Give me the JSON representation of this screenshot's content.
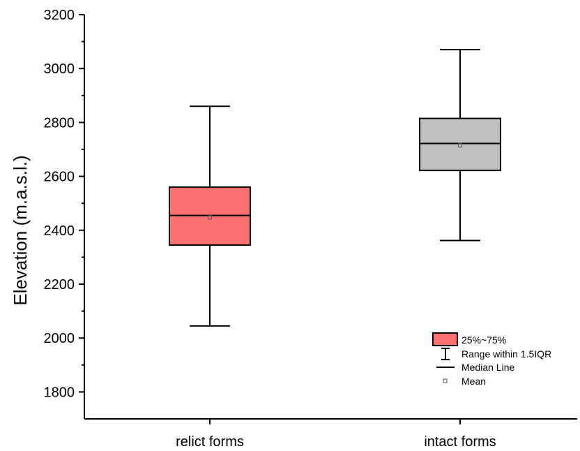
{
  "chart_data": {
    "type": "box",
    "title": "",
    "xlabel": "",
    "ylabel": "Elevation (m.a.s.l.)",
    "ylim": [
      1700,
      3200
    ],
    "yticks": [
      1800,
      2000,
      2200,
      2400,
      2600,
      2800,
      3000,
      3200
    ],
    "grid": false,
    "legend_position": "bottom-right",
    "categories": [
      "relict forms",
      "intact forms"
    ],
    "boxes": [
      {
        "category": "relict forms",
        "color": "#fb7070",
        "whisker_low": 2045,
        "q1": 2345,
        "median": 2455,
        "q3": 2560,
        "whisker_high": 2860,
        "mean": 2448
      },
      {
        "category": "intact forms",
        "color": "#c0c0c0",
        "whisker_low": 2362,
        "q1": 2622,
        "median": 2722,
        "q3": 2815,
        "whisker_high": 3070,
        "mean": 2715
      }
    ],
    "legend": {
      "box": "25%~75%",
      "whisker": "Range within 1.5IQR",
      "median": "Median Line",
      "mean": "Mean"
    }
  }
}
